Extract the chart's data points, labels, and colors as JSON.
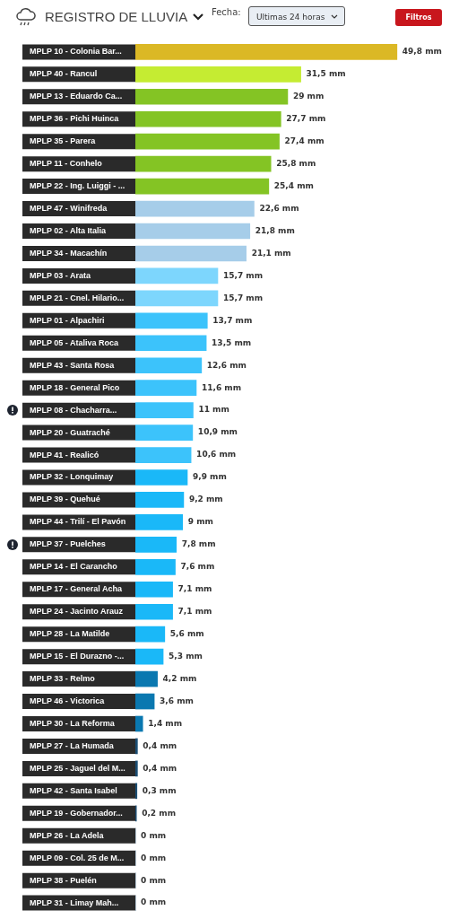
{
  "chart_data": {
    "type": "bar",
    "orientation": "horizontal",
    "title": "REGISTRO DE LLUVIA",
    "annotations": [
      "Fecha:",
      "Ultimas 24 horas",
      "Filtros"
    ],
    "categories": [
      "MPLP 10 - Colonia Bar...",
      "MPLP 40 - Rancul",
      "MPLP 13 - Eduardo Ca...",
      "MPLP 36 - Pichi Huinca",
      "MPLP 35 - Parera",
      "MPLP 11 - Conhelo",
      "MPLP 22 - Ing. Luiggi - ...",
      "MPLP 47 - Winifreda",
      "MPLP 02 - Alta Italia",
      "MPLP 34 - Macachín",
      "MPLP 03 - Arata",
      "MPLP 21 - Cnel. Hilario...",
      "MPLP 01 - Alpachiri",
      "MPLP 05 - Ataliva Roca",
      "MPLP 43 - Santa Rosa",
      "MPLP 18 - General Pico",
      "MPLP 08 - Chacharra...",
      "MPLP 20 - Guatraché",
      "MPLP 41 - Realicó",
      "MPLP 32 - Lonquimay",
      "MPLP 39 - Quehué",
      "MPLP 44 - Trilí - El Pavón",
      "MPLP 37 - Puelches",
      "MPLP 14 - El Carancho",
      "MPLP 17 - General Acha",
      "MPLP 24 - Jacinto Arauz",
      "MPLP 28 - La Matilde",
      "MPLP 15 - El Durazno -...",
      "MPLP 33 - Relmo",
      "MPLP 46 - Victorica",
      "MPLP 30 - La Reforma",
      "MPLP 27 - La Humada",
      "MPLP 25 - Jaguel del M...",
      "MPLP 42 - Santa Isabel",
      "MPLP 19 - Gobernador...",
      "MPLP 26 - La Adela",
      "MPLP 09 - Col. 25 de M...",
      "MPLP 38 - Puelén",
      "MPLP 31 - Limay Mah..."
    ],
    "values": [
      49.8,
      31.5,
      29,
      27.7,
      27.4,
      25.8,
      25.4,
      22.6,
      21.8,
      21.1,
      15.7,
      15.7,
      13.7,
      13.5,
      12.6,
      11.6,
      11,
      10.9,
      10.6,
      9.9,
      9.2,
      9,
      7.8,
      7.6,
      7.1,
      7.1,
      5.6,
      5.3,
      4.2,
      3.6,
      1.4,
      0.4,
      0.4,
      0.3,
      0.2,
      0,
      0,
      0,
      0
    ],
    "value_labels": [
      "49,8 mm",
      "31,5 mm",
      "29 mm",
      "27,7 mm",
      "27,4 mm",
      "25,8 mm",
      "25,4 mm",
      "22,6 mm",
      "21,8 mm",
      "21,1 mm",
      "15,7 mm",
      "15,7 mm",
      "13,7 mm",
      "13,5 mm",
      "12,6 mm",
      "11,6 mm",
      "11 mm",
      "10,9 mm",
      "10,6 mm",
      "9,9 mm",
      "9,2 mm",
      "9 mm",
      "7,8 mm",
      "7,6 mm",
      "7,1 mm",
      "7,1 mm",
      "5,6 mm",
      "5,3 mm",
      "4,2 mm",
      "3,6 mm",
      "1,4 mm",
      "0,4 mm",
      "0,4 mm",
      "0,3 mm",
      "0,2 mm",
      "0 mm",
      "0 mm",
      "0 mm",
      "0 mm"
    ],
    "colors": [
      "#dbb825",
      "#c5ec32",
      "#84c424",
      "#84c424",
      "#84c424",
      "#84c424",
      "#84c424",
      "#a6cde9",
      "#a6cde9",
      "#a6cde9",
      "#7dd6fd",
      "#7dd6fd",
      "#3cc3fb",
      "#3cc3fb",
      "#3cc3fb",
      "#3cc3fb",
      "#3cc3fb",
      "#3cc3fb",
      "#3cc3fb",
      "#1ab8f8",
      "#1ab8f8",
      "#1ab8f8",
      "#1ab8f8",
      "#1ab8f8",
      "#1ab8f8",
      "#1ab8f8",
      "#1ab8f8",
      "#1ab8f8",
      "#0a78b0",
      "#0a78b0",
      "#0a78b0",
      "#1c4e73",
      "#1c4e73",
      "#1c4e73",
      "#1c4e73",
      "#1c4e73",
      "#1c4e73",
      "#1c4e73",
      "#1c4e73"
    ]
  }
}
